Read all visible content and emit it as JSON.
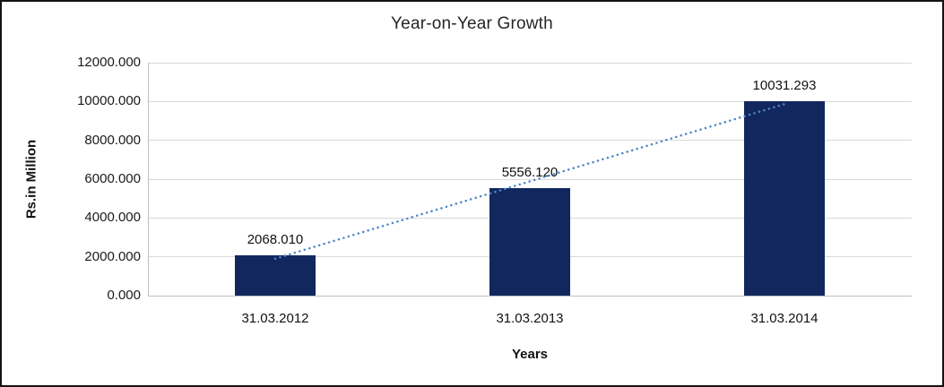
{
  "chart_data": {
    "type": "bar",
    "title": "Year-on-Year Growth",
    "xlabel": "Years",
    "ylabel": "Rs.in Million",
    "categories": [
      "31.03.2012",
      "31.03.2013",
      "31.03.2014"
    ],
    "series": [
      {
        "values": [
          2068.01,
          5556.12,
          10031.293
        ]
      }
    ],
    "data_labels": [
      "2068.010",
      "5556.120",
      "10031.293"
    ],
    "y_axis": {
      "ticks": [
        "12000.000",
        "10000.000",
        "8000.000",
        "6000.000",
        "4000.000",
        "2000.000",
        "0.000"
      ],
      "min": 0,
      "max": 12000,
      "step": 2000
    },
    "grid": true,
    "legend": "none",
    "trendline": {
      "type": "linear",
      "style": "dotted"
    },
    "colors": {
      "bar": "#12275E",
      "trendline": "#4E86C8",
      "gridline": "#D9D9D9",
      "axis_line": "#BFBFBF",
      "text": "#1A1A1A"
    }
  }
}
